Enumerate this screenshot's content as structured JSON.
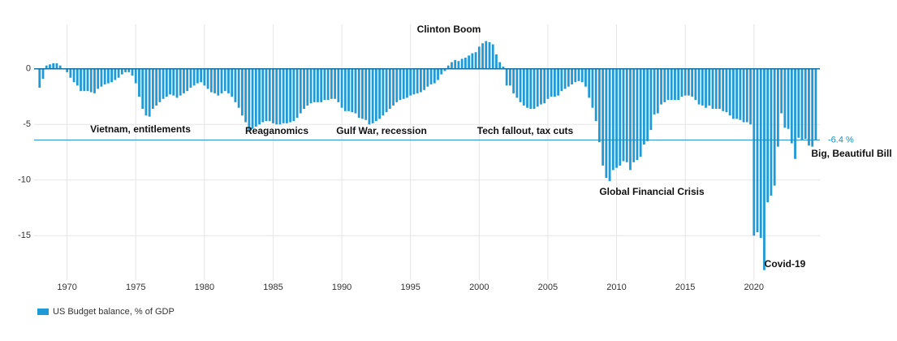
{
  "chart_data": {
    "type": "bar",
    "annotations": [
      "Clinton Boom",
      "Vietnam, entitlements",
      "Reaganomics",
      "Gulf War, recession",
      "Tech fallout, tax cuts",
      "Global Financial Crisis",
      "Big, Beautiful Bill",
      "Covid-19"
    ],
    "reference_line": {
      "value": -6.4,
      "label": "-6.4 %",
      "color": "#1a8fc4"
    },
    "x": [
      1968,
      1968.25,
      1968.5,
      1968.75,
      1969,
      1969.25,
      1969.5,
      1969.75,
      1970,
      1970.25,
      1970.5,
      1970.75,
      1971,
      1971.25,
      1971.5,
      1971.75,
      1972,
      1972.25,
      1972.5,
      1972.75,
      1973,
      1973.25,
      1973.5,
      1973.75,
      1974,
      1974.25,
      1974.5,
      1974.75,
      1975,
      1975.25,
      1975.5,
      1975.75,
      1976,
      1976.25,
      1976.5,
      1976.75,
      1977,
      1977.25,
      1977.5,
      1977.75,
      1978,
      1978.25,
      1978.5,
      1978.75,
      1979,
      1979.25,
      1979.5,
      1979.75,
      1980,
      1980.25,
      1980.5,
      1980.75,
      1981,
      1981.25,
      1981.5,
      1981.75,
      1982,
      1982.25,
      1982.5,
      1982.75,
      1983,
      1983.25,
      1983.5,
      1983.75,
      1984,
      1984.25,
      1984.5,
      1984.75,
      1985,
      1985.25,
      1985.5,
      1985.75,
      1986,
      1986.25,
      1986.5,
      1986.75,
      1987,
      1987.25,
      1987.5,
      1987.75,
      1988,
      1988.25,
      1988.5,
      1988.75,
      1989,
      1989.25,
      1989.5,
      1989.75,
      1990,
      1990.25,
      1990.5,
      1990.75,
      1991,
      1991.25,
      1991.5,
      1991.75,
      1992,
      1992.25,
      1992.5,
      1992.75,
      1993,
      1993.25,
      1993.5,
      1993.75,
      1994,
      1994.25,
      1994.5,
      1994.75,
      1995,
      1995.25,
      1995.5,
      1995.75,
      1996,
      1996.25,
      1996.5,
      1996.75,
      1997,
      1997.25,
      1997.5,
      1997.75,
      1998,
      1998.25,
      1998.5,
      1998.75,
      1999,
      1999.25,
      1999.5,
      1999.75,
      2000,
      2000.25,
      2000.5,
      2000.75,
      2001,
      2001.25,
      2001.5,
      2001.75,
      2002,
      2002.25,
      2002.5,
      2002.75,
      2003,
      2003.25,
      2003.5,
      2003.75,
      2004,
      2004.25,
      2004.5,
      2004.75,
      2005,
      2005.25,
      2005.5,
      2005.75,
      2006,
      2006.25,
      2006.5,
      2006.75,
      2007,
      2007.25,
      2007.5,
      2007.75,
      2008,
      2008.25,
      2008.5,
      2008.75,
      2009,
      2009.25,
      2009.5,
      2009.75,
      2010,
      2010.25,
      2010.5,
      2010.75,
      2011,
      2011.25,
      2011.5,
      2011.75,
      2012,
      2012.25,
      2012.5,
      2012.75,
      2013,
      2013.25,
      2013.5,
      2013.75,
      2014,
      2014.25,
      2014.5,
      2014.75,
      2015,
      2015.25,
      2015.5,
      2015.75,
      2016,
      2016.25,
      2016.5,
      2016.75,
      2017,
      2017.25,
      2017.5,
      2017.75,
      2018,
      2018.25,
      2018.5,
      2018.75,
      2019,
      2019.25,
      2019.5,
      2019.75,
      2020,
      2020.25,
      2020.5,
      2020.75,
      2021,
      2021.25,
      2021.5,
      2021.75,
      2022,
      2022.25,
      2022.5,
      2022.75,
      2023,
      2023.25,
      2023.5,
      2023.75,
      2024,
      2024.25,
      2024.5
    ],
    "series": [
      {
        "name": "US Budget balance, % of GDP",
        "color": "#1f9ad6",
        "values": [
          -1.7,
          -0.9,
          0.3,
          0.4,
          0.5,
          0.5,
          0.3,
          0,
          -0.3,
          -0.8,
          -1.2,
          -1.5,
          -2.0,
          -2.0,
          -2.0,
          -2.1,
          -2.2,
          -1.8,
          -1.6,
          -1.4,
          -1.3,
          -1.2,
          -1.0,
          -0.8,
          -0.5,
          -0.3,
          -0.3,
          -0.6,
          -1.3,
          -2.5,
          -3.6,
          -4.2,
          -4.3,
          -3.6,
          -3.3,
          -3.0,
          -2.7,
          -2.5,
          -2.3,
          -2.4,
          -2.6,
          -2.4,
          -2.2,
          -2.0,
          -1.7,
          -1.5,
          -1.3,
          -1.2,
          -1.5,
          -1.8,
          -2.1,
          -2.2,
          -2.4,
          -2.2,
          -2.0,
          -2.2,
          -2.5,
          -3.0,
          -3.5,
          -4.2,
          -4.8,
          -5.5,
          -5.4,
          -5.2,
          -5.0,
          -4.8,
          -4.7,
          -4.7,
          -4.9,
          -5.0,
          -5.0,
          -4.9,
          -4.9,
          -4.8,
          -4.7,
          -4.4,
          -4.0,
          -3.6,
          -3.3,
          -3.1,
          -3.0,
          -3.0,
          -3.0,
          -2.8,
          -2.8,
          -2.7,
          -2.7,
          -3.0,
          -3.5,
          -3.8,
          -3.8,
          -3.9,
          -4.0,
          -4.4,
          -4.5,
          -4.6,
          -5.0,
          -4.9,
          -4.7,
          -4.5,
          -4.2,
          -3.9,
          -3.6,
          -3.3,
          -3.0,
          -2.8,
          -2.7,
          -2.6,
          -2.4,
          -2.3,
          -2.2,
          -2.1,
          -1.9,
          -1.6,
          -1.4,
          -1.3,
          -1.0,
          -0.5,
          -0.2,
          0.3,
          0.6,
          0.8,
          0.7,
          0.9,
          1.0,
          1.2,
          1.4,
          1.5,
          2.0,
          2.3,
          2.5,
          2.4,
          2.2,
          1.3,
          0.6,
          0.2,
          -1.5,
          -1.5,
          -2.2,
          -2.6,
          -3.0,
          -3.3,
          -3.5,
          -3.6,
          -3.6,
          -3.4,
          -3.2,
          -3.1,
          -2.7,
          -2.5,
          -2.5,
          -2.4,
          -2.0,
          -1.8,
          -1.6,
          -1.4,
          -1.2,
          -1.1,
          -1.2,
          -1.6,
          -2.6,
          -3.5,
          -4.7,
          -6.6,
          -8.7,
          -9.8,
          -10.1,
          -9.1,
          -8.9,
          -8.7,
          -8.3,
          -8.4,
          -9.1,
          -8.4,
          -8.2,
          -7.9,
          -6.8,
          -6.5,
          -5.5,
          -4.1,
          -4.0,
          -3.2,
          -3.0,
          -2.8,
          -2.8,
          -2.8,
          -2.8,
          -2.5,
          -2.4,
          -2.4,
          -2.5,
          -2.8,
          -3.2,
          -3.3,
          -3.5,
          -3.3,
          -3.6,
          -3.6,
          -3.6,
          -3.8,
          -3.9,
          -4.2,
          -4.5,
          -4.5,
          -4.6,
          -4.8,
          -4.8,
          -5.0,
          -15.0,
          -14.7,
          -15.2,
          -18.1,
          -12.0,
          -11.4,
          -10.5,
          -7.0,
          -4.0,
          -5.3,
          -5.4,
          -6.7,
          -8.1,
          -6.2,
          -6.4,
          -6.3,
          -6.9,
          -7.0,
          -6.4
        ]
      }
    ],
    "xlim": [
      1967.6,
      2024.8
    ],
    "xticks": [
      1970,
      1975,
      1980,
      1985,
      1990,
      1995,
      2000,
      2005,
      2010,
      2015,
      2020
    ],
    "ylim": [
      -19,
      4
    ],
    "yticks": [
      0,
      -5,
      -10,
      -15
    ],
    "grid": true,
    "legend": "bottom-left"
  }
}
